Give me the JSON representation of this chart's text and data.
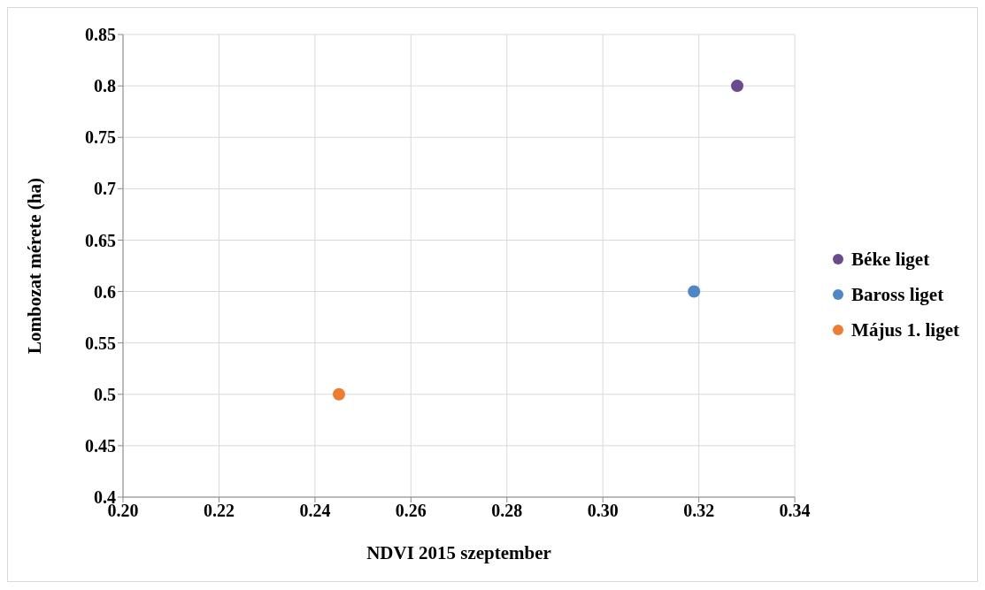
{
  "chart_data": {
    "type": "scatter",
    "xlabel": "NDVI 2015 szeptember",
    "ylabel": "Lombozat mérete (ha)",
    "series": [
      {
        "name": "Béke liget",
        "color": "#6a4c8c",
        "x": [
          0.328
        ],
        "values": [
          0.8
        ]
      },
      {
        "name": "Baross liget",
        "color": "#4f86c6",
        "x": [
          0.319
        ],
        "values": [
          0.6
        ]
      },
      {
        "name": "Május 1. liget",
        "color": "#ed7d31",
        "x": [
          0.245
        ],
        "values": [
          0.5
        ]
      }
    ],
    "xlim": [
      0.2,
      0.34
    ],
    "xticks": [
      {
        "value": 0.2,
        "label": "0.20"
      },
      {
        "value": 0.22,
        "label": "0.22"
      },
      {
        "value": 0.24,
        "label": "0.24"
      },
      {
        "value": 0.26,
        "label": "0.26"
      },
      {
        "value": 0.28,
        "label": "0.28"
      },
      {
        "value": 0.3,
        "label": "0.30"
      },
      {
        "value": 0.32,
        "label": "0.32"
      },
      {
        "value": 0.34,
        "label": "0.34"
      }
    ],
    "ylim": [
      0.4,
      0.85
    ],
    "yticks": [
      0.4,
      0.45,
      0.5,
      0.55,
      0.6,
      0.65,
      0.7,
      0.75,
      0.8,
      0.85
    ],
    "grid": true,
    "legend": "right",
    "marker": "circle"
  }
}
